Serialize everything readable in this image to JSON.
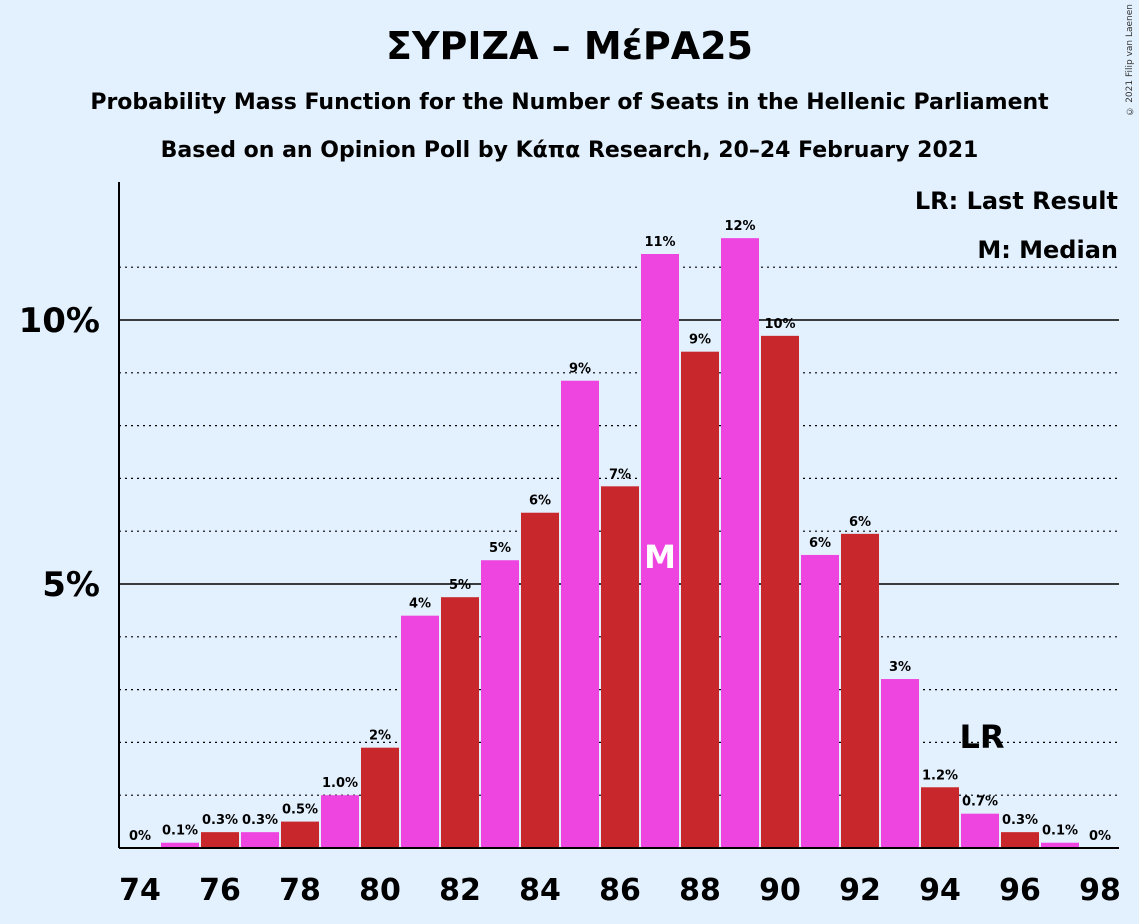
{
  "title": "ΣΥΡΙΖΑ – ΜέΡΑ25",
  "subtitle1": "Probability Mass Function for the Number of Seats in the Hellenic Parliament",
  "subtitle2": "Based on an Opinion Poll by Κάπα Research, 20–24 February 2021",
  "copyright": "© 2021 Filip van Laenen",
  "colors": {
    "background": "#e3f0fd",
    "magenta": "#ee45e0",
    "red": "#c8282b"
  },
  "chart_data": {
    "type": "bar",
    "x": [
      74,
      75,
      76,
      77,
      78,
      79,
      80,
      81,
      82,
      83,
      84,
      85,
      86,
      87,
      88,
      89,
      90,
      91,
      92,
      93,
      94,
      95,
      96,
      97,
      98
    ],
    "values": [
      0,
      0.1,
      0.3,
      0.3,
      0.5,
      1.0,
      1.9,
      4.4,
      4.75,
      5.45,
      6.35,
      8.85,
      6.85,
      11.25,
      9.4,
      11.55,
      9.7,
      5.55,
      5.95,
      3.2,
      1.15,
      0.65,
      0.3,
      0.1,
      0
    ],
    "labels": [
      "0%",
      "0.1%",
      "0.3%",
      "0.3%",
      "0.5%",
      "1.0%",
      "2%",
      "4%",
      "5%",
      "5%",
      "6%",
      "9%",
      "7%",
      "11%",
      "9%",
      "12%",
      "10%",
      "6%",
      "6%",
      "3%",
      "1.2%",
      "0.7%",
      "0.3%",
      "0.1%",
      "0%"
    ],
    "x_tick_labels": [
      "74",
      "76",
      "78",
      "80",
      "82",
      "84",
      "86",
      "88",
      "90",
      "92",
      "94",
      "96",
      "98"
    ],
    "y_tick_labels": [
      "5%",
      "10%"
    ],
    "ylim": [
      0,
      12.65
    ],
    "gridlines": [
      1,
      2,
      3,
      4,
      5,
      6,
      7,
      8,
      9,
      10,
      11
    ],
    "solid_gridlines": [
      5,
      10
    ],
    "median_seat": 87,
    "median_label": "M",
    "last_result_seat": 95,
    "last_result_label": "LR",
    "legend": [
      "LR: Last Result",
      "M: Median"
    ],
    "legend_position": "top-right"
  }
}
